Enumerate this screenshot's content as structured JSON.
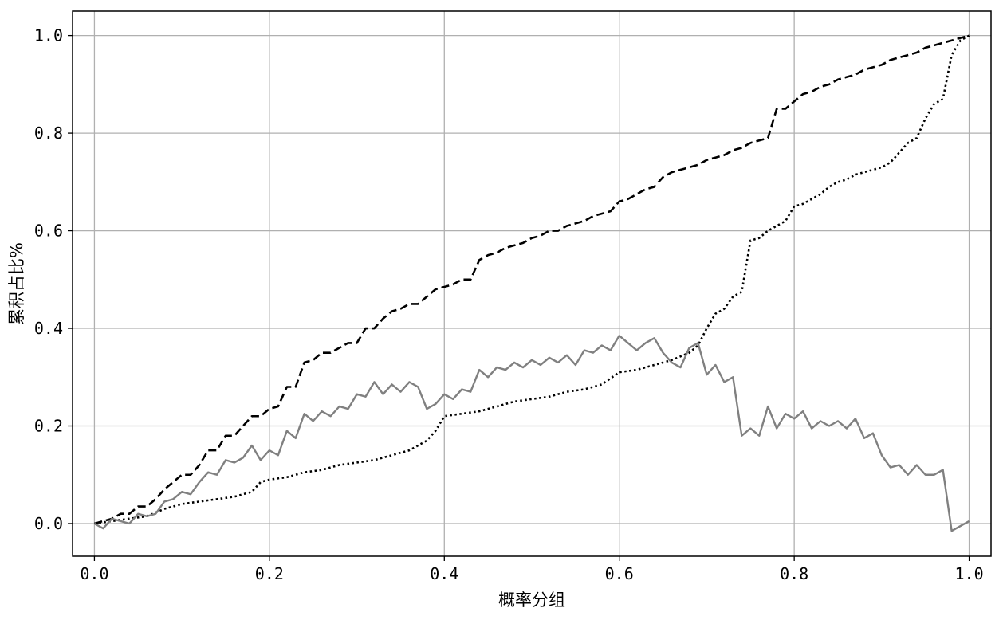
{
  "chart_data": {
    "type": "line",
    "title": "",
    "xlabel": "概率分组",
    "ylabel": "累积占比%",
    "xlim": [
      -0.025,
      1.025
    ],
    "ylim": [
      -0.067,
      1.05
    ],
    "x_ticks": [
      0.0,
      0.2,
      0.4,
      0.6,
      0.8,
      1.0
    ],
    "x_tick_labels": [
      "0.0",
      "0.2",
      "0.4",
      "0.6",
      "0.8",
      "1.0"
    ],
    "y_ticks": [
      0.0,
      0.2,
      0.4,
      0.6,
      0.8,
      1.0
    ],
    "y_tick_labels": [
      "0.0",
      "0.2",
      "0.4",
      "0.6",
      "0.8",
      "1.0"
    ],
    "grid": true,
    "legend": null,
    "series": [
      {
        "style": "dashed",
        "color": "#000000",
        "points": [
          [
            0.0,
            0.0
          ],
          [
            0.02,
            0.01
          ],
          [
            0.03,
            0.02
          ],
          [
            0.04,
            0.02
          ],
          [
            0.05,
            0.035
          ],
          [
            0.06,
            0.035
          ],
          [
            0.07,
            0.05
          ],
          [
            0.08,
            0.07
          ],
          [
            0.09,
            0.085
          ],
          [
            0.1,
            0.1
          ],
          [
            0.11,
            0.1
          ],
          [
            0.12,
            0.12
          ],
          [
            0.13,
            0.15
          ],
          [
            0.14,
            0.15
          ],
          [
            0.15,
            0.18
          ],
          [
            0.16,
            0.18
          ],
          [
            0.17,
            0.2
          ],
          [
            0.18,
            0.22
          ],
          [
            0.19,
            0.22
          ],
          [
            0.2,
            0.235
          ],
          [
            0.21,
            0.24
          ],
          [
            0.22,
            0.28
          ],
          [
            0.23,
            0.28
          ],
          [
            0.24,
            0.33
          ],
          [
            0.25,
            0.335
          ],
          [
            0.26,
            0.35
          ],
          [
            0.27,
            0.35
          ],
          [
            0.28,
            0.36
          ],
          [
            0.29,
            0.37
          ],
          [
            0.3,
            0.37
          ],
          [
            0.31,
            0.4
          ],
          [
            0.32,
            0.4
          ],
          [
            0.33,
            0.42
          ],
          [
            0.34,
            0.435
          ],
          [
            0.35,
            0.44
          ],
          [
            0.36,
            0.45
          ],
          [
            0.37,
            0.45
          ],
          [
            0.38,
            0.465
          ],
          [
            0.39,
            0.48
          ],
          [
            0.4,
            0.485
          ],
          [
            0.41,
            0.49
          ],
          [
            0.42,
            0.5
          ],
          [
            0.43,
            0.5
          ],
          [
            0.44,
            0.54
          ],
          [
            0.45,
            0.55
          ],
          [
            0.46,
            0.555
          ],
          [
            0.47,
            0.565
          ],
          [
            0.48,
            0.57
          ],
          [
            0.49,
            0.575
          ],
          [
            0.5,
            0.585
          ],
          [
            0.51,
            0.59
          ],
          [
            0.52,
            0.6
          ],
          [
            0.53,
            0.6
          ],
          [
            0.54,
            0.61
          ],
          [
            0.55,
            0.615
          ],
          [
            0.56,
            0.62
          ],
          [
            0.57,
            0.63
          ],
          [
            0.58,
            0.635
          ],
          [
            0.59,
            0.64
          ],
          [
            0.6,
            0.66
          ],
          [
            0.61,
            0.665
          ],
          [
            0.62,
            0.675
          ],
          [
            0.63,
            0.685
          ],
          [
            0.64,
            0.69
          ],
          [
            0.65,
            0.71
          ],
          [
            0.66,
            0.72
          ],
          [
            0.67,
            0.725
          ],
          [
            0.68,
            0.73
          ],
          [
            0.69,
            0.735
          ],
          [
            0.7,
            0.745
          ],
          [
            0.71,
            0.75
          ],
          [
            0.72,
            0.755
          ],
          [
            0.73,
            0.765
          ],
          [
            0.74,
            0.77
          ],
          [
            0.75,
            0.78
          ],
          [
            0.76,
            0.785
          ],
          [
            0.77,
            0.79
          ],
          [
            0.78,
            0.85
          ],
          [
            0.79,
            0.85
          ],
          [
            0.8,
            0.865
          ],
          [
            0.81,
            0.88
          ],
          [
            0.82,
            0.885
          ],
          [
            0.83,
            0.895
          ],
          [
            0.84,
            0.9
          ],
          [
            0.85,
            0.91
          ],
          [
            0.86,
            0.915
          ],
          [
            0.87,
            0.92
          ],
          [
            0.88,
            0.93
          ],
          [
            0.89,
            0.935
          ],
          [
            0.9,
            0.94
          ],
          [
            0.91,
            0.95
          ],
          [
            0.92,
            0.955
          ],
          [
            0.93,
            0.96
          ],
          [
            0.94,
            0.965
          ],
          [
            0.95,
            0.975
          ],
          [
            0.96,
            0.98
          ],
          [
            0.97,
            0.985
          ],
          [
            0.98,
            0.99
          ],
          [
            0.99,
            0.995
          ],
          [
            1.0,
            1.0
          ]
        ]
      },
      {
        "style": "dotted",
        "color": "#000000",
        "points": [
          [
            0.0,
            0.0
          ],
          [
            0.02,
            0.005
          ],
          [
            0.04,
            0.01
          ],
          [
            0.06,
            0.015
          ],
          [
            0.08,
            0.03
          ],
          [
            0.1,
            0.04
          ],
          [
            0.12,
            0.045
          ],
          [
            0.14,
            0.05
          ],
          [
            0.16,
            0.055
          ],
          [
            0.18,
            0.065
          ],
          [
            0.19,
            0.085
          ],
          [
            0.2,
            0.09
          ],
          [
            0.22,
            0.095
          ],
          [
            0.24,
            0.105
          ],
          [
            0.26,
            0.11
          ],
          [
            0.28,
            0.12
          ],
          [
            0.3,
            0.125
          ],
          [
            0.32,
            0.13
          ],
          [
            0.34,
            0.14
          ],
          [
            0.36,
            0.15
          ],
          [
            0.37,
            0.16
          ],
          [
            0.38,
            0.17
          ],
          [
            0.39,
            0.19
          ],
          [
            0.4,
            0.22
          ],
          [
            0.42,
            0.225
          ],
          [
            0.44,
            0.23
          ],
          [
            0.46,
            0.24
          ],
          [
            0.48,
            0.25
          ],
          [
            0.5,
            0.255
          ],
          [
            0.52,
            0.26
          ],
          [
            0.54,
            0.27
          ],
          [
            0.56,
            0.275
          ],
          [
            0.58,
            0.285
          ],
          [
            0.6,
            0.31
          ],
          [
            0.62,
            0.315
          ],
          [
            0.64,
            0.325
          ],
          [
            0.66,
            0.335
          ],
          [
            0.68,
            0.35
          ],
          [
            0.69,
            0.365
          ],
          [
            0.7,
            0.4
          ],
          [
            0.71,
            0.43
          ],
          [
            0.72,
            0.44
          ],
          [
            0.73,
            0.465
          ],
          [
            0.74,
            0.475
          ],
          [
            0.75,
            0.58
          ],
          [
            0.76,
            0.585
          ],
          [
            0.77,
            0.6
          ],
          [
            0.78,
            0.61
          ],
          [
            0.79,
            0.62
          ],
          [
            0.8,
            0.65
          ],
          [
            0.81,
            0.655
          ],
          [
            0.82,
            0.665
          ],
          [
            0.83,
            0.675
          ],
          [
            0.84,
            0.69
          ],
          [
            0.85,
            0.7
          ],
          [
            0.86,
            0.705
          ],
          [
            0.87,
            0.715
          ],
          [
            0.88,
            0.72
          ],
          [
            0.89,
            0.725
          ],
          [
            0.9,
            0.73
          ],
          [
            0.91,
            0.74
          ],
          [
            0.92,
            0.76
          ],
          [
            0.93,
            0.78
          ],
          [
            0.94,
            0.79
          ],
          [
            0.95,
            0.83
          ],
          [
            0.96,
            0.86
          ],
          [
            0.97,
            0.87
          ],
          [
            0.98,
            0.96
          ],
          [
            0.99,
            0.99
          ],
          [
            1.0,
            1.0
          ]
        ]
      },
      {
        "style": "solid",
        "color": "#808080",
        "points": [
          [
            0.0,
            0.0
          ],
          [
            0.01,
            -0.01
          ],
          [
            0.02,
            0.01
          ],
          [
            0.03,
            0.005
          ],
          [
            0.04,
            0.0
          ],
          [
            0.05,
            0.02
          ],
          [
            0.06,
            0.015
          ],
          [
            0.07,
            0.02
          ],
          [
            0.08,
            0.045
          ],
          [
            0.09,
            0.05
          ],
          [
            0.1,
            0.065
          ],
          [
            0.11,
            0.06
          ],
          [
            0.12,
            0.085
          ],
          [
            0.13,
            0.105
          ],
          [
            0.14,
            0.1
          ],
          [
            0.15,
            0.13
          ],
          [
            0.16,
            0.125
          ],
          [
            0.17,
            0.135
          ],
          [
            0.18,
            0.16
          ],
          [
            0.19,
            0.13
          ],
          [
            0.2,
            0.15
          ],
          [
            0.21,
            0.14
          ],
          [
            0.22,
            0.19
          ],
          [
            0.23,
            0.175
          ],
          [
            0.24,
            0.225
          ],
          [
            0.25,
            0.21
          ],
          [
            0.26,
            0.23
          ],
          [
            0.27,
            0.22
          ],
          [
            0.28,
            0.24
          ],
          [
            0.29,
            0.235
          ],
          [
            0.3,
            0.265
          ],
          [
            0.31,
            0.26
          ],
          [
            0.32,
            0.29
          ],
          [
            0.33,
            0.265
          ],
          [
            0.34,
            0.285
          ],
          [
            0.35,
            0.27
          ],
          [
            0.36,
            0.29
          ],
          [
            0.37,
            0.28
          ],
          [
            0.38,
            0.235
          ],
          [
            0.39,
            0.245
          ],
          [
            0.4,
            0.265
          ],
          [
            0.41,
            0.255
          ],
          [
            0.42,
            0.275
          ],
          [
            0.43,
            0.27
          ],
          [
            0.44,
            0.315
          ],
          [
            0.45,
            0.3
          ],
          [
            0.46,
            0.32
          ],
          [
            0.47,
            0.315
          ],
          [
            0.48,
            0.33
          ],
          [
            0.49,
            0.32
          ],
          [
            0.5,
            0.335
          ],
          [
            0.51,
            0.325
          ],
          [
            0.52,
            0.34
          ],
          [
            0.53,
            0.33
          ],
          [
            0.54,
            0.345
          ],
          [
            0.55,
            0.325
          ],
          [
            0.56,
            0.355
          ],
          [
            0.57,
            0.35
          ],
          [
            0.58,
            0.365
          ],
          [
            0.59,
            0.355
          ],
          [
            0.6,
            0.385
          ],
          [
            0.61,
            0.37
          ],
          [
            0.62,
            0.355
          ],
          [
            0.63,
            0.37
          ],
          [
            0.64,
            0.38
          ],
          [
            0.65,
            0.35
          ],
          [
            0.66,
            0.33
          ],
          [
            0.67,
            0.32
          ],
          [
            0.68,
            0.36
          ],
          [
            0.69,
            0.37
          ],
          [
            0.7,
            0.305
          ],
          [
            0.71,
            0.325
          ],
          [
            0.72,
            0.29
          ],
          [
            0.73,
            0.3
          ],
          [
            0.74,
            0.18
          ],
          [
            0.75,
            0.195
          ],
          [
            0.76,
            0.18
          ],
          [
            0.77,
            0.24
          ],
          [
            0.78,
            0.195
          ],
          [
            0.79,
            0.225
          ],
          [
            0.8,
            0.215
          ],
          [
            0.81,
            0.23
          ],
          [
            0.82,
            0.195
          ],
          [
            0.83,
            0.21
          ],
          [
            0.84,
            0.2
          ],
          [
            0.85,
            0.21
          ],
          [
            0.86,
            0.195
          ],
          [
            0.87,
            0.215
          ],
          [
            0.88,
            0.175
          ],
          [
            0.89,
            0.185
          ],
          [
            0.9,
            0.14
          ],
          [
            0.91,
            0.115
          ],
          [
            0.92,
            0.12
          ],
          [
            0.93,
            0.1
          ],
          [
            0.94,
            0.12
          ],
          [
            0.95,
            0.1
          ],
          [
            0.96,
            0.1
          ],
          [
            0.97,
            0.11
          ],
          [
            0.98,
            -0.015
          ],
          [
            0.99,
            -0.005
          ],
          [
            1.0,
            0.005
          ]
        ]
      }
    ]
  }
}
